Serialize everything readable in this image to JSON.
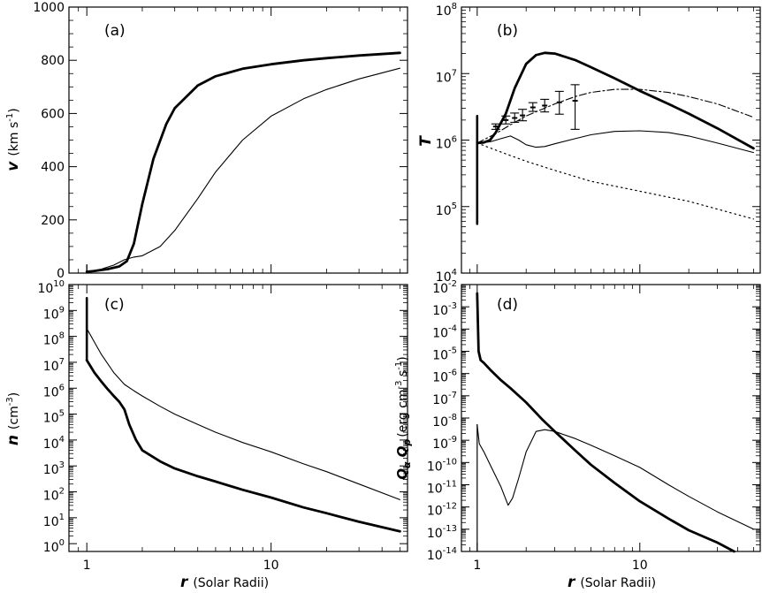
{
  "chart_data": [
    {
      "panel": "(a)",
      "type": "line",
      "x_scale": "log",
      "xlim": [
        0.8,
        55
      ],
      "y_scale": "linear",
      "ylim": [
        0,
        1000
      ],
      "ylabel_symbol": "v",
      "ylabel_unit": "(km s",
      "ylabel_exp": "-1",
      "ylabel_close": ")",
      "y_ticks": [
        0,
        200,
        400,
        600,
        800,
        1000
      ],
      "y_tick_labels": [
        "0",
        "200",
        "400",
        "600",
        "800",
        "1000"
      ],
      "series": [
        {
          "style": "thick-solid",
          "x": [
            1.0,
            1.1,
            1.3,
            1.5,
            1.65,
            1.8,
            2.0,
            2.3,
            2.7,
            3.0,
            4.0,
            5.0,
            7.0,
            10.0,
            15.0,
            20.0,
            30.0,
            50.0
          ],
          "y": [
            5,
            8,
            15,
            25,
            45,
            110,
            260,
            430,
            560,
            620,
            705,
            740,
            768,
            785,
            800,
            808,
            818,
            828
          ]
        },
        {
          "style": "thin-solid",
          "x": [
            1.0,
            1.2,
            1.4,
            1.6,
            1.8,
            2.0,
            2.5,
            3.0,
            4.0,
            5.0,
            7.0,
            10.0,
            15.0,
            20.0,
            30.0,
            50.0
          ],
          "y": [
            5,
            15,
            30,
            50,
            60,
            65,
            100,
            160,
            280,
            380,
            500,
            590,
            655,
            690,
            730,
            770
          ]
        },
        {
          "style": "spike-thin",
          "x": [
            1.0,
            1.0
          ],
          "y": [
            0,
            30
          ]
        }
      ]
    },
    {
      "panel": "(b)",
      "type": "line",
      "x_scale": "log",
      "xlim": [
        0.8,
        55
      ],
      "y_scale": "log",
      "ylim": [
        10000,
        100000000
      ],
      "ylabel_symbol": "T",
      "y_ticks": [
        10000,
        100000,
        1000000,
        10000000,
        100000000
      ],
      "y_tick_base": "10",
      "y_tick_exps": [
        "4",
        "5",
        "6",
        "7",
        "8"
      ],
      "series": [
        {
          "style": "thick-solid",
          "x": [
            1.0,
            1.1,
            1.2,
            1.3,
            1.5,
            1.7,
            2.0,
            2.3,
            2.6,
            3.0,
            4.0,
            5.0,
            7.0,
            10.0,
            15.0,
            20.0,
            30.0,
            50.0
          ],
          "y": [
            900000,
            920000,
            1000000,
            1300000,
            2500000,
            6000000,
            14000000,
            19000000,
            20500000,
            20000000,
            16000000,
            12500000,
            8500000,
            5500000,
            3500000,
            2500000,
            1500000,
            750000
          ]
        },
        {
          "style": "thin-solid",
          "x": [
            1.0,
            1.2,
            1.4,
            1.6,
            1.8,
            2.0,
            2.3,
            2.6,
            3.0,
            4.0,
            5.0,
            7.0,
            10.0,
            15.0,
            20.0,
            30.0,
            50.0
          ],
          "y": [
            900000,
            940000,
            1050000,
            1150000,
            1000000,
            850000,
            780000,
            800000,
            880000,
            1050000,
            1200000,
            1350000,
            1380000,
            1300000,
            1150000,
            900000,
            650000
          ]
        },
        {
          "style": "dot-dash",
          "x": [
            1.0,
            1.3,
            1.6,
            2.0,
            2.5,
            3.0,
            4.0,
            5.0,
            7.0,
            10.0,
            15.0,
            20.0,
            30.0,
            50.0
          ],
          "y": [
            900000,
            1250000,
            1700000,
            2300000,
            2900000,
            3500000,
            4500000,
            5200000,
            5800000,
            5800000,
            5200000,
            4500000,
            3500000,
            2200000
          ]
        },
        {
          "style": "dotted",
          "x": [
            1.0,
            1.5,
            2.0,
            3.0,
            5.0,
            10.0,
            20.0,
            50.0
          ],
          "y": [
            900000,
            620000,
            480000,
            350000,
            240000,
            170000,
            120000,
            65000
          ]
        },
        {
          "style": "spike-thick",
          "x": [
            1.0,
            1.0
          ],
          "y": [
            55000,
            2300000
          ]
        }
      ],
      "error_bars": [
        {
          "x": 1.3,
          "y": 1600000,
          "lo": 1450000,
          "hi": 1750000
        },
        {
          "x": 1.5,
          "y": 2000000,
          "lo": 1750000,
          "hi": 2300000
        },
        {
          "x": 1.7,
          "y": 2150000,
          "lo": 1850000,
          "hi": 2550000
        },
        {
          "x": 1.9,
          "y": 2350000,
          "lo": 1950000,
          "hi": 2900000
        },
        {
          "x": 2.2,
          "y": 3100000,
          "lo": 2700000,
          "hi": 3650000
        },
        {
          "x": 2.6,
          "y": 3300000,
          "lo": 2650000,
          "hi": 4100000
        },
        {
          "x": 3.2,
          "y": 3700000,
          "lo": 2450000,
          "hi": 5400000
        },
        {
          "x": 4.0,
          "y": 3900000,
          "lo": 1450000,
          "hi": 6800000
        }
      ]
    },
    {
      "panel": "(c)",
      "type": "line",
      "x_scale": "log",
      "xlim": [
        0.8,
        55
      ],
      "y_scale": "log",
      "ylim": [
        0.5,
        10000000000
      ],
      "ylabel_symbol": "n",
      "ylabel_unit": "(cm",
      "ylabel_exp": "-3",
      "ylabel_close": ")",
      "y_ticks": [
        1,
        10,
        100,
        1000,
        10000,
        100000,
        1000000,
        10000000,
        100000000,
        1000000000,
        10000000000
      ],
      "y_tick_base": "10",
      "y_tick_exps": [
        "0",
        "1",
        "2",
        "3",
        "4",
        "5",
        "6",
        "7",
        "8",
        "9",
        "10"
      ],
      "x_ticks": [
        1,
        10
      ],
      "x_tick_labels": [
        "1",
        "10"
      ],
      "xlabel_symbol": "r",
      "xlabel_text": "(Solar Radii)",
      "series": [
        {
          "style": "thick-solid",
          "x": [
            1.0,
            1.1,
            1.2,
            1.3,
            1.4,
            1.5,
            1.6,
            1.7,
            1.85,
            2.0,
            2.5,
            3.0,
            4.0,
            5.0,
            7.0,
            10.0,
            15.0,
            20.0,
            30.0,
            50.0
          ],
          "y": [
            12000000,
            4000000,
            1800000,
            900000,
            500000,
            300000,
            150000,
            40000,
            10000,
            4000,
            1500,
            800,
            400,
            250,
            120,
            60,
            25,
            15,
            7,
            3
          ]
        },
        {
          "style": "thin-solid",
          "x": [
            1.0,
            1.1,
            1.2,
            1.4,
            1.6,
            1.8,
            2.0,
            2.5,
            3.0,
            4.0,
            5.0,
            7.0,
            10.0,
            15.0,
            20.0,
            30.0,
            50.0
          ],
          "y": [
            200000000,
            60000000,
            20000000,
            4000000,
            1400000,
            800000,
            500000,
            200000,
            100000,
            40000,
            20000,
            8000,
            3500,
            1200,
            600,
            200,
            50
          ]
        },
        {
          "style": "spike-thick",
          "x": [
            1.0,
            1.0
          ],
          "y": [
            12000000,
            3000000000
          ]
        }
      ]
    },
    {
      "panel": "(d)",
      "type": "line",
      "x_scale": "log",
      "xlim": [
        0.8,
        55
      ],
      "y_scale": "log",
      "ylim": [
        1e-14,
        0.01
      ],
      "ylabel_alpha": "α",
      "ylabel_p": "p",
      "ylabel_unit": "(erg cm",
      "ylabel_exp1": "-3",
      "ylabel_mid": " s",
      "ylabel_exp2": "-1",
      "ylabel_close": ")",
      "y_ticks": [
        1e-14,
        1e-13,
        1e-12,
        1e-11,
        1e-10,
        1e-09,
        1e-08,
        1e-07,
        1e-06,
        1e-05,
        0.0001,
        0.001,
        0.01
      ],
      "y_tick_base": "10",
      "y_tick_exps": [
        "-14",
        "-13",
        "-12",
        "-11",
        "-10",
        "-9",
        "-8",
        "-7",
        "-6",
        "-5",
        "-4",
        "-3",
        "-2"
      ],
      "x_ticks": [
        1,
        10
      ],
      "x_tick_labels": [
        "1",
        "10"
      ],
      "xlabel_symbol": "r",
      "xlabel_text": "(Solar Radii)",
      "series": [
        {
          "style": "thick-solid",
          "x": [
            1.0,
            1.02,
            1.05,
            1.1,
            1.2,
            1.4,
            1.6,
            2.0,
            2.5,
            3.0,
            4.0,
            5.0,
            7.0,
            10.0,
            15.0,
            20.0,
            30.0,
            38.0
          ],
          "y": [
            0.004,
            1e-05,
            4e-06,
            3e-06,
            1.5e-06,
            5e-07,
            2.2e-07,
            5e-08,
            9e-09,
            2.5e-09,
            3.5e-10,
            8e-11,
            1.2e-11,
            1.8e-12,
            3e-13,
            9e-14,
            2.5e-14,
            1e-14
          ]
        },
        {
          "style": "thin-solid",
          "x": [
            1.0,
            1.03,
            1.1,
            1.2,
            1.4,
            1.55,
            1.65,
            1.8,
            2.0,
            2.3,
            2.6,
            3.0,
            4.0,
            5.0,
            7.0,
            10.0,
            15.0,
            20.0,
            30.0,
            50.0
          ],
          "y": [
            5e-09,
            7e-10,
            3e-10,
            8e-11,
            8e-12,
            1.2e-12,
            2.5e-12,
            2e-11,
            3e-10,
            2.5e-09,
            3e-09,
            2.5e-09,
            1.2e-09,
            6e-10,
            2e-10,
            6e-11,
            1e-11,
            3e-12,
            6e-13,
            1e-13
          ]
        },
        {
          "style": "spike-thin",
          "x": [
            1.0,
            1.0
          ],
          "y": [
            1e-14,
            5e-09
          ]
        }
      ]
    }
  ]
}
